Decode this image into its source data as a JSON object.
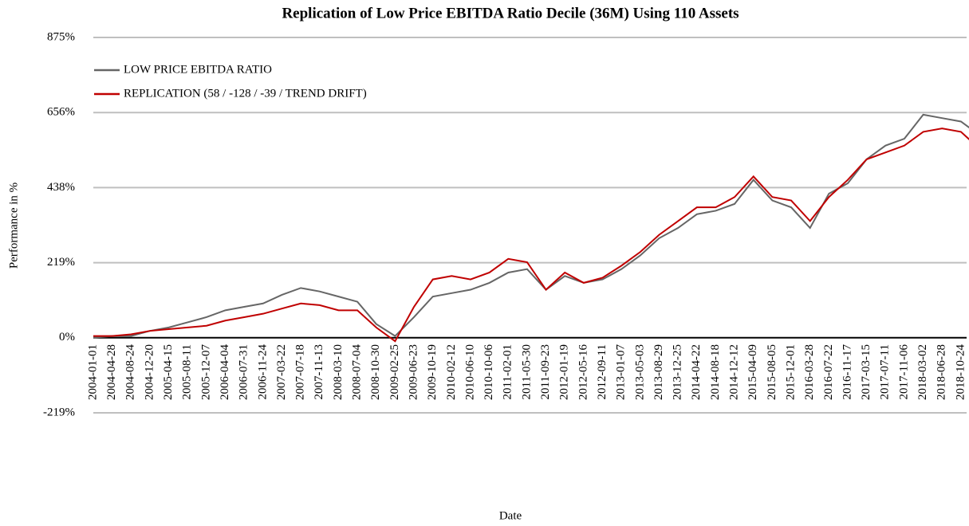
{
  "chart_data": {
    "type": "line",
    "title": "Replication of Low Price EBITDA Ratio Decile (36M) Using 110 Assets",
    "x_label": "Date",
    "y_label": "Performance in %",
    "categories": [
      "2004-01-01",
      "2004-04-28",
      "2004-08-24",
      "2004-12-20",
      "2005-04-15",
      "2005-08-11",
      "2005-12-07",
      "2006-04-04",
      "2006-07-31",
      "2006-11-24",
      "2007-03-22",
      "2007-07-18",
      "2007-11-13",
      "2008-03-10",
      "2008-07-04",
      "2008-10-30",
      "2009-02-25",
      "2009-06-23",
      "2009-10-19",
      "2010-02-12",
      "2010-06-10",
      "2010-10-06",
      "2011-02-01",
      "2011-05-30",
      "2011-09-23",
      "2012-01-19",
      "2012-05-16",
      "2012-09-11",
      "2013-01-07",
      "2013-05-03",
      "2013-08-29",
      "2013-12-25",
      "2014-04-22",
      "2014-08-18",
      "2014-12-12",
      "2015-04-09",
      "2015-08-05",
      "2015-12-01",
      "2016-03-28",
      "2016-07-22",
      "2016-11-17",
      "2017-03-15",
      "2017-07-11",
      "2017-11-06",
      "2018-03-02",
      "2018-06-28",
      "2018-10-24",
      null
    ],
    "series": [
      {
        "name": "LOW PRICE EBITDA RATIO",
        "color": "#666666",
        "values": [
          0,
          5,
          5,
          20,
          30,
          45,
          60,
          80,
          90,
          100,
          125,
          145,
          135,
          120,
          105,
          40,
          5,
          60,
          120,
          130,
          140,
          160,
          190,
          200,
          140,
          180,
          160,
          170,
          200,
          240,
          290,
          320,
          360,
          370,
          390,
          460,
          400,
          380,
          320,
          420,
          450,
          520,
          560,
          580,
          650,
          640,
          630,
          590
        ]
      },
      {
        "name": "REPLICATION (58 / -128 / -39 / TREND DRIFT)",
        "color": "#c00000",
        "values": [
          5,
          5,
          10,
          20,
          25,
          30,
          35,
          50,
          60,
          70,
          85,
          100,
          95,
          80,
          80,
          30,
          -10,
          90,
          170,
          180,
          170,
          190,
          230,
          220,
          140,
          190,
          160,
          175,
          210,
          250,
          300,
          340,
          380,
          380,
          410,
          470,
          410,
          400,
          340,
          410,
          460,
          520,
          540,
          560,
          600,
          610,
          600,
          550
        ]
      }
    ],
    "ylim": [
      -218.75,
      875
    ],
    "yticks": [
      {
        "value": -218.75,
        "label": "-219%"
      },
      {
        "value": 0,
        "label": "0%"
      },
      {
        "value": 218.75,
        "label": "219%"
      },
      {
        "value": 437.5,
        "label": "438%"
      },
      {
        "value": 656.25,
        "label": "656%"
      },
      {
        "value": 875,
        "label": "875%"
      }
    ],
    "grid": true,
    "legend": "upper-left"
  }
}
